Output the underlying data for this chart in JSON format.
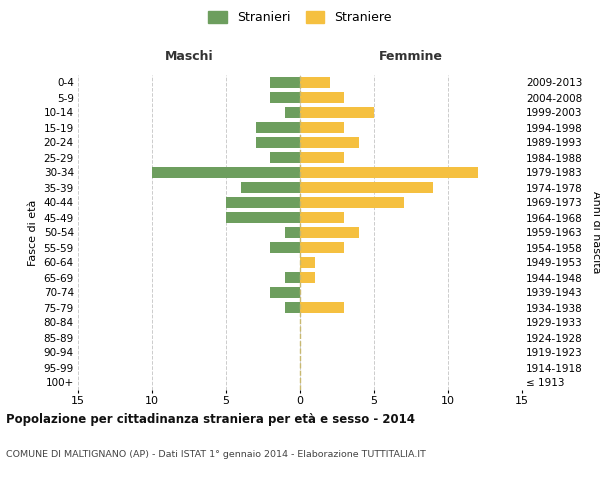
{
  "age_groups": [
    "100+",
    "95-99",
    "90-94",
    "85-89",
    "80-84",
    "75-79",
    "70-74",
    "65-69",
    "60-64",
    "55-59",
    "50-54",
    "45-49",
    "40-44",
    "35-39",
    "30-34",
    "25-29",
    "20-24",
    "15-19",
    "10-14",
    "5-9",
    "0-4"
  ],
  "birth_years": [
    "≤ 1913",
    "1914-1918",
    "1919-1923",
    "1924-1928",
    "1929-1933",
    "1934-1938",
    "1939-1943",
    "1944-1948",
    "1949-1953",
    "1954-1958",
    "1959-1963",
    "1964-1968",
    "1969-1973",
    "1974-1978",
    "1979-1983",
    "1984-1988",
    "1989-1993",
    "1994-1998",
    "1999-2003",
    "2004-2008",
    "2009-2013"
  ],
  "maschi": [
    0,
    0,
    0,
    0,
    0,
    1,
    2,
    1,
    0,
    2,
    1,
    5,
    5,
    4,
    10,
    2,
    3,
    3,
    1,
    2,
    2
  ],
  "femmine": [
    0,
    0,
    0,
    0,
    0,
    3,
    0,
    1,
    1,
    3,
    4,
    3,
    7,
    9,
    12,
    3,
    4,
    3,
    5,
    3,
    2
  ],
  "color_maschi": "#6d9e5e",
  "color_femmine": "#f5c040",
  "title": "Popolazione per cittadinanza straniera per età e sesso - 2014",
  "subtitle": "COMUNE DI MALTIGNANO (AP) - Dati ISTAT 1° gennaio 2014 - Elaborazione TUTTITALIA.IT",
  "xlabel_left": "Maschi",
  "xlabel_right": "Femmine",
  "ylabel_left": "Fasce di età",
  "ylabel_right": "Anni di nascita",
  "legend_maschi": "Stranieri",
  "legend_femmine": "Straniere",
  "xlim": 15,
  "background_color": "#ffffff",
  "grid_color": "#cccccc",
  "bar_height": 0.75
}
